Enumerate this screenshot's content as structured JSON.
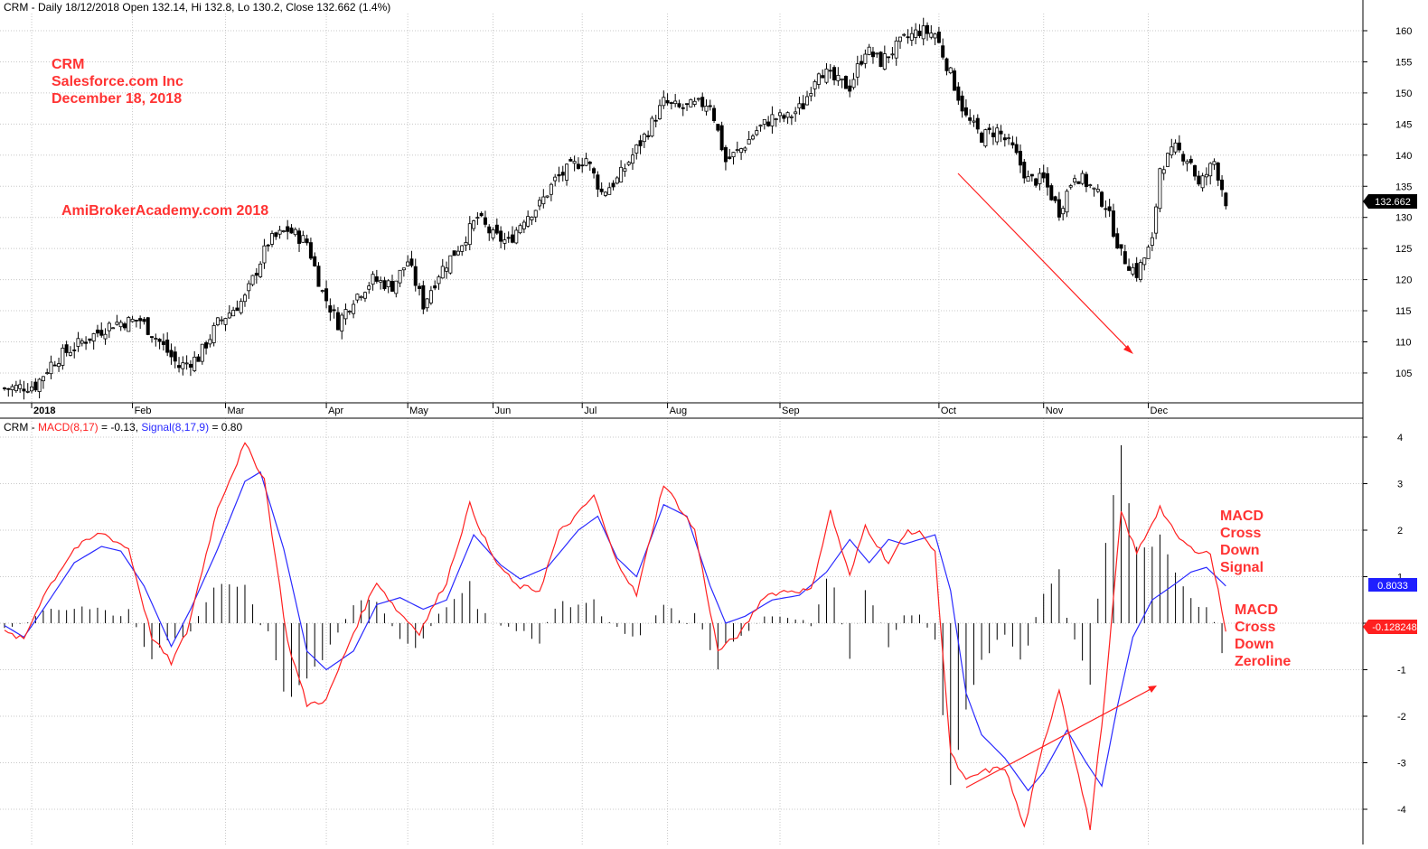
{
  "header": {
    "top_title": "CRM - Daily 18/12/2018 Open 132.14, Hi 132.8, Lo 130.2, Close 132.662 (1.4%)",
    "macd_prefix": "CRM - ",
    "macd_label": "MACD(8,17)",
    "macd_value": " = -0.13, ",
    "signal_label": "Signal(8,17,9)",
    "signal_value": " = 0.80"
  },
  "annotations": {
    "ticker": "CRM",
    "company": "Salesforce.com Inc",
    "date": "December 18, 2018",
    "site": "AmiBrokerAcademy.com 2018",
    "signal_note": [
      "MACD",
      "Cross",
      "Down",
      "Signal"
    ],
    "zero_note": [
      "MACD",
      "Cross",
      "Down",
      "Zeroline"
    ]
  },
  "colors": {
    "macd": "#ff2020",
    "signal": "#2a2aff",
    "histogram": "#000000",
    "annotation": "#ff3333",
    "grid": "#c8c8c8",
    "badge_price": "#000000",
    "badge_signal": "#1f1fff",
    "badge_macd": "#ff2020"
  },
  "chart_data": [
    {
      "type": "candlestick",
      "title": "CRM - Daily 18/12/2018 Open 132.14, Hi 132.8, Lo 130.2, Close 132.662 (1.4%)",
      "months": [
        "2018",
        "Feb",
        "Mar",
        "Apr",
        "May",
        "Jun",
        "Jul",
        "Aug",
        "Sep",
        "Oct",
        "Nov",
        "Dec"
      ],
      "y_ticks": [
        105,
        110,
        115,
        120,
        125,
        130,
        135,
        140,
        145,
        150,
        155,
        160
      ],
      "ylim": [
        100,
        162
      ],
      "last_price_label": "132.662",
      "close_anchors": [
        [
          0,
          102.5
        ],
        [
          8,
          103
        ],
        [
          12,
          106.5
        ],
        [
          15,
          108
        ],
        [
          20,
          110
        ],
        [
          28,
          113
        ],
        [
          35,
          113.5
        ],
        [
          40,
          110
        ],
        [
          45,
          106
        ],
        [
          50,
          107.5
        ],
        [
          55,
          113
        ],
        [
          62,
          117
        ],
        [
          68,
          126
        ],
        [
          73,
          128
        ],
        [
          78,
          126
        ],
        [
          82,
          118
        ],
        [
          86,
          113
        ],
        [
          90,
          117
        ],
        [
          95,
          120
        ],
        [
          100,
          119
        ],
        [
          104,
          123
        ],
        [
          108,
          116
        ],
        [
          112,
          121
        ],
        [
          118,
          126
        ],
        [
          122,
          130
        ],
        [
          126,
          127
        ],
        [
          130,
          126
        ],
        [
          134,
          130
        ],
        [
          138,
          132
        ],
        [
          142,
          136
        ],
        [
          146,
          138
        ],
        [
          150,
          139.5
        ],
        [
          154,
          134
        ],
        [
          158,
          136
        ],
        [
          162,
          140
        ],
        [
          166,
          144
        ],
        [
          170,
          148.5
        ],
        [
          174,
          147.5
        ],
        [
          178,
          148
        ],
        [
          182,
          148.5
        ],
        [
          186,
          139
        ],
        [
          190,
          141
        ],
        [
          194,
          144
        ],
        [
          198,
          146
        ],
        [
          202,
          146
        ],
        [
          206,
          148
        ],
        [
          210,
          154
        ],
        [
          214,
          152
        ],
        [
          218,
          151
        ],
        [
          222,
          157
        ],
        [
          226,
          155
        ],
        [
          232,
          158.5
        ],
        [
          236,
          160
        ],
        [
          240,
          159.5
        ],
        [
          244,
          153
        ],
        [
          248,
          146
        ],
        [
          252,
          143
        ],
        [
          256,
          144
        ],
        [
          260,
          141
        ],
        [
          264,
          136
        ],
        [
          268,
          136
        ],
        [
          272,
          131
        ],
        [
          276,
          137
        ],
        [
          280,
          135
        ],
        [
          284,
          132
        ],
        [
          288,
          124
        ],
        [
          292,
          121
        ],
        [
          296,
          126
        ],
        [
          298,
          138
        ],
        [
          302,
          141
        ],
        [
          306,
          139
        ],
        [
          308,
          135
        ],
        [
          312,
          139
        ],
        [
          315,
          132.66
        ]
      ],
      "n_bars": 316
    },
    {
      "type": "line",
      "title": "MACD(8,17) / Signal(8,17,9)",
      "series": [
        {
          "name": "MACD(8,17)",
          "color": "#ff2020",
          "last_value": -0.13,
          "badge": "-0.128248"
        },
        {
          "name": "Signal(8,17,9)",
          "color": "#2a2aff",
          "last_value": 0.8,
          "badge": "0.8033"
        }
      ],
      "y_ticks": [
        -4,
        -3,
        -2,
        -1,
        0,
        1,
        2,
        3,
        4
      ],
      "ylim": [
        -4.6,
        4.3
      ],
      "macd_anchors": [
        [
          0,
          -0.2
        ],
        [
          5,
          -0.35
        ],
        [
          10,
          0.6
        ],
        [
          18,
          1.6
        ],
        [
          25,
          1.95
        ],
        [
          32,
          1.6
        ],
        [
          38,
          -0.3
        ],
        [
          43,
          -0.85
        ],
        [
          47,
          -0.2
        ],
        [
          55,
          2.5
        ],
        [
          62,
          3.85
        ],
        [
          67,
          3.1
        ],
        [
          73,
          -0.4
        ],
        [
          78,
          -1.75
        ],
        [
          83,
          -1.65
        ],
        [
          90,
          -0.2
        ],
        [
          96,
          0.9
        ],
        [
          101,
          0.3
        ],
        [
          107,
          -0.2
        ],
        [
          114,
          0.9
        ],
        [
          120,
          2.55
        ],
        [
          126,
          1.4
        ],
        [
          132,
          0.8
        ],
        [
          138,
          0.7
        ],
        [
          143,
          1.95
        ],
        [
          148,
          2.35
        ],
        [
          152,
          2.75
        ],
        [
          157,
          1.5
        ],
        [
          163,
          0.6
        ],
        [
          170,
          3.0
        ],
        [
          178,
          2.0
        ],
        [
          184,
          -0.6
        ],
        [
          190,
          -0.2
        ],
        [
          196,
          0.6
        ],
        [
          202,
          0.7
        ],
        [
          208,
          0.7
        ],
        [
          213,
          2.4
        ],
        [
          218,
          1.0
        ],
        [
          222,
          2.1
        ],
        [
          228,
          1.3
        ],
        [
          233,
          2.0
        ],
        [
          237,
          1.9
        ],
        [
          240,
          1.5
        ],
        [
          244,
          -2.8
        ],
        [
          248,
          -3.4
        ],
        [
          252,
          -3.2
        ],
        [
          258,
          -3.1
        ],
        [
          263,
          -4.4
        ],
        [
          268,
          -2.6
        ],
        [
          272,
          -1.4
        ],
        [
          276,
          -2.9
        ],
        [
          280,
          -4.4
        ],
        [
          284,
          -1.4
        ],
        [
          288,
          2.4
        ],
        [
          292,
          1.5
        ],
        [
          298,
          2.5
        ],
        [
          302,
          1.9
        ],
        [
          306,
          1.6
        ],
        [
          311,
          1.5
        ],
        [
          315,
          -0.13
        ]
      ],
      "signal_anchors": [
        [
          0,
          -0.05
        ],
        [
          5,
          -0.3
        ],
        [
          10,
          0.3
        ],
        [
          18,
          1.3
        ],
        [
          25,
          1.65
        ],
        [
          30,
          1.55
        ],
        [
          36,
          0.8
        ],
        [
          43,
          -0.5
        ],
        [
          48,
          0.3
        ],
        [
          55,
          1.6
        ],
        [
          62,
          3.05
        ],
        [
          66,
          3.25
        ],
        [
          72,
          1.6
        ],
        [
          78,
          -0.6
        ],
        [
          83,
          -1.0
        ],
        [
          90,
          -0.6
        ],
        [
          96,
          0.4
        ],
        [
          102,
          0.55
        ],
        [
          108,
          0.3
        ],
        [
          114,
          0.5
        ],
        [
          121,
          1.9
        ],
        [
          128,
          1.25
        ],
        [
          133,
          0.95
        ],
        [
          140,
          1.2
        ],
        [
          148,
          2.0
        ],
        [
          153,
          2.3
        ],
        [
          158,
          1.4
        ],
        [
          163,
          1.0
        ],
        [
          170,
          2.55
        ],
        [
          176,
          2.3
        ],
        [
          182,
          0.8
        ],
        [
          186,
          0.0
        ],
        [
          191,
          0.15
        ],
        [
          198,
          0.5
        ],
        [
          205,
          0.6
        ],
        [
          212,
          1.1
        ],
        [
          218,
          1.8
        ],
        [
          223,
          1.3
        ],
        [
          228,
          1.8
        ],
        [
          232,
          1.7
        ],
        [
          240,
          1.9
        ],
        [
          244,
          0.7
        ],
        [
          248,
          -1.5
        ],
        [
          252,
          -2.4
        ],
        [
          258,
          -2.9
        ],
        [
          264,
          -3.6
        ],
        [
          268,
          -3.2
        ],
        [
          274,
          -2.3
        ],
        [
          279,
          -3.0
        ],
        [
          283,
          -3.5
        ],
        [
          287,
          -1.8
        ],
        [
          291,
          -0.3
        ],
        [
          296,
          0.5
        ],
        [
          302,
          0.85
        ],
        [
          306,
          1.1
        ],
        [
          310,
          1.2
        ],
        [
          315,
          0.8
        ]
      ]
    }
  ]
}
